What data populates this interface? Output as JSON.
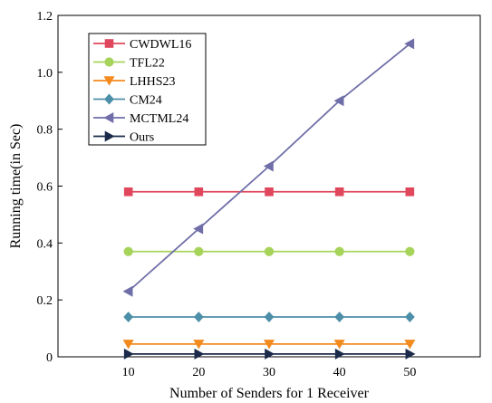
{
  "chart_data": {
    "type": "line",
    "xlabel": "Number of Senders for 1 Receiver",
    "ylabel": "Running time(in Sec)",
    "x": [
      10,
      20,
      30,
      40,
      50
    ],
    "xlim": [
      0,
      60
    ],
    "ylim": [
      0,
      1.2
    ],
    "xticks": [
      "10",
      "20",
      "30",
      "40",
      "50"
    ],
    "yticks": [
      "0",
      "0.2",
      "0.4",
      "0.6",
      "0.8",
      "1.0",
      "1.2"
    ],
    "grid": false,
    "legend_position": "top-left",
    "series": [
      {
        "name": "CWDWL16",
        "color": "#e0475c",
        "marker": "square",
        "values": [
          0.58,
          0.58,
          0.58,
          0.58,
          0.58
        ]
      },
      {
        "name": "TFL22",
        "color": "#a6d35a",
        "marker": "circle",
        "values": [
          0.37,
          0.37,
          0.37,
          0.37,
          0.37
        ]
      },
      {
        "name": "LHHS23",
        "color": "#f28a1e",
        "marker": "triangle-down",
        "values": [
          0.045,
          0.045,
          0.045,
          0.045,
          0.045
        ]
      },
      {
        "name": "CM24",
        "color": "#4d8fa8",
        "marker": "diamond",
        "values": [
          0.14,
          0.14,
          0.14,
          0.14,
          0.14
        ]
      },
      {
        "name": "MCTML24",
        "color": "#6f6ea8",
        "marker": "triangle-left",
        "values": [
          0.23,
          0.45,
          0.67,
          0.9,
          1.1
        ]
      },
      {
        "name": "Ours",
        "color": "#1b2a4a",
        "marker": "triangle-right",
        "values": [
          0.01,
          0.01,
          0.01,
          0.01,
          0.01
        ]
      }
    ]
  }
}
